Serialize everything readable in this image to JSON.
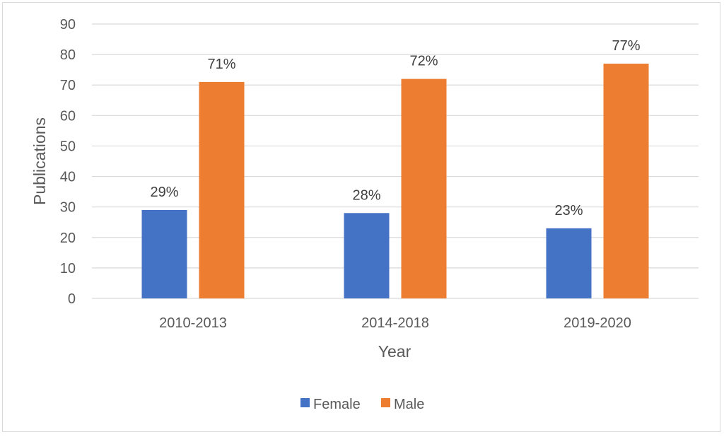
{
  "chart_data": {
    "type": "bar",
    "categories": [
      "2010-2013",
      "2014-2018",
      "2019-2020"
    ],
    "series": [
      {
        "name": "Female",
        "values": [
          29,
          28,
          23
        ],
        "labels": [
          "29%",
          "28%",
          "23%"
        ],
        "color": "#4472C4"
      },
      {
        "name": "Male",
        "values": [
          71,
          72,
          77
        ],
        "labels": [
          "71%",
          "72%",
          "77%"
        ],
        "color": "#ED7D31"
      }
    ],
    "title": "",
    "xlabel": "Year",
    "ylabel": "Publications",
    "ylim": [
      0,
      90
    ],
    "yticks": [
      "0",
      "10",
      "20",
      "30",
      "40",
      "50",
      "60",
      "70",
      "80",
      "90"
    ],
    "grid": true,
    "legend_position": "bottom"
  },
  "colors": {
    "gridline": "#d9d9d9",
    "axis_text": "#595959"
  }
}
